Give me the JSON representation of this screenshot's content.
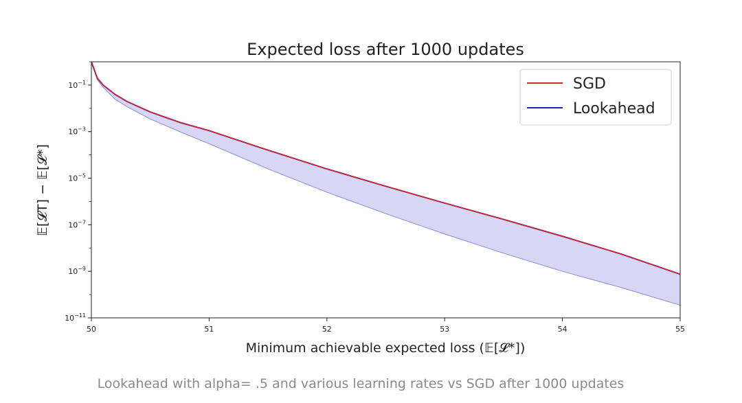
{
  "chart_data": {
    "type": "line",
    "title": "Expected loss after 1000 updates",
    "xlabel": "Minimum achievable expected loss (𝔼[𝓛*])",
    "ylabel": "𝔼[𝓛T] − 𝔼[𝓛*]",
    "xlim": [
      50,
      55
    ],
    "ylim": [
      1e-11,
      1
    ],
    "yscale": "log",
    "grid": false,
    "legend_position": "top-right",
    "xticks": [
      "50",
      "51",
      "52",
      "53",
      "54",
      "55"
    ],
    "yticks": [
      {
        "base": "10",
        "exp": "−1",
        "value": 0.1
      },
      {
        "base": "10",
        "exp": "−3",
        "value": 0.001
      },
      {
        "base": "10",
        "exp": "−5",
        "value": 1e-05
      },
      {
        "base": "10",
        "exp": "−7",
        "value": 1e-07
      },
      {
        "base": "10",
        "exp": "−9",
        "value": 1e-09
      },
      {
        "base": "10",
        "exp": "−11",
        "value": 1e-11
      }
    ],
    "series": [
      {
        "name": "SGD",
        "color": "#d62728",
        "x": [
          50.0,
          50.05,
          50.1,
          50.2,
          50.3,
          50.5,
          50.75,
          51.0,
          51.5,
          52.0,
          52.5,
          53.0,
          53.5,
          54.0,
          54.5,
          55.0
        ],
        "y": [
          1.0,
          0.2,
          0.1,
          0.04,
          0.02,
          0.007,
          0.0025,
          0.0011,
          0.00016,
          2.5e-05,
          4.5e-06,
          8.5e-07,
          1.7e-07,
          3.2e-08,
          5.5e-09,
          7.5e-10
        ]
      },
      {
        "name": "Lookahead",
        "color": "#1f1fb4",
        "x": [
          50.0,
          50.05,
          50.1,
          50.2,
          50.3,
          50.5,
          50.75,
          51.0,
          51.5,
          52.0,
          52.5,
          53.0,
          53.5,
          54.0,
          54.5,
          55.0
        ],
        "y": [
          1.0,
          0.2,
          0.1,
          0.04,
          0.02,
          0.007,
          0.0025,
          0.0011,
          0.00016,
          2.5e-05,
          4.5e-06,
          8.5e-07,
          1.7e-07,
          3.2e-08,
          5.5e-09,
          7.5e-10
        ],
        "band_lower": [
          1.0,
          0.17,
          0.08,
          0.025,
          0.012,
          0.0035,
          0.001,
          0.0003,
          2.5e-05,
          2.5e-06,
          3e-07,
          4e-08,
          6e-09,
          1e-09,
          2e-10,
          3.5e-11
        ]
      }
    ]
  },
  "caption": "Lookahead with alpha= .5 and various learning rates vs SGD after 1000 updates"
}
